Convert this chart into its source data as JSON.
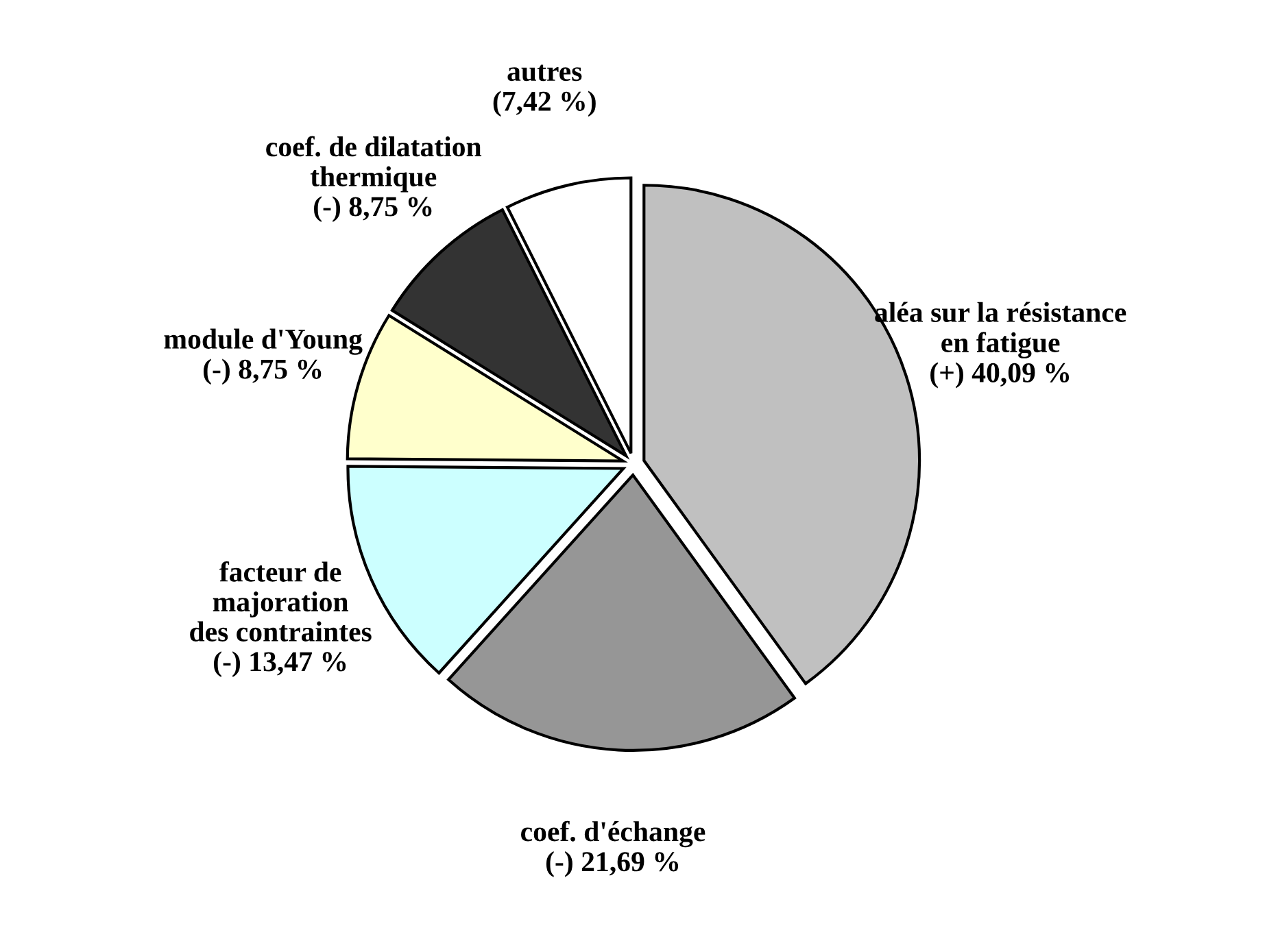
{
  "chart_data": {
    "type": "pie",
    "categories": [
      "aléa sur la résistance\nen fatigue",
      "coef. d'échange",
      "facteur de\nmajoration\ndes contraintes",
      "module d'Young",
      "coef. de dilatation\nthermique",
      "autres"
    ],
    "values": [
      40.09,
      21.69,
      13.47,
      8.75,
      8.75,
      7.42
    ],
    "value_labels": [
      "(+) 40,09 %",
      "(-) 21,69 %",
      "(-) 13,47 %",
      "(-) 8,75 %",
      "(-) 8,75 %",
      "(7,42 %)"
    ],
    "colors": [
      "#c0c0c0",
      "#969696",
      "#ccffff",
      "#ffffcc",
      "#333333",
      "#ffffff"
    ],
    "legend": false
  }
}
